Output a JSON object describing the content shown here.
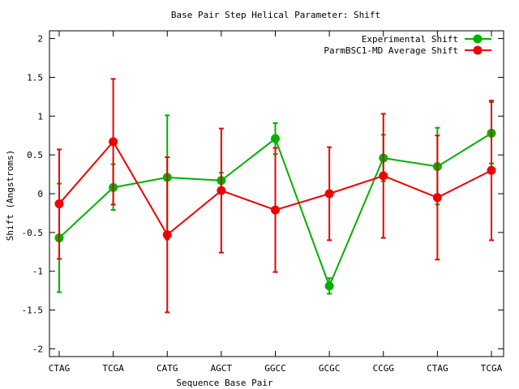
{
  "chart_data": {
    "type": "line",
    "title": "Base Pair Step Helical Parameter: Shift",
    "xlabel": "Sequence Base Pair",
    "ylabel": "Shift (Angstroms)",
    "categories": [
      "CTAG",
      "TCGA",
      "CATG",
      "AGCT",
      "GGCC",
      "GCGC",
      "CCGG",
      "CTAG",
      "TCGA"
    ],
    "ylim": [
      -2.1,
      2.1
    ],
    "yticks": [
      2,
      1.5,
      1,
      0.5,
      0,
      -0.5,
      -1,
      -1.5,
      -2
    ],
    "ytick_labels": [
      "2",
      "1.5",
      "1",
      "0.5",
      "0",
      "-0.5",
      "-1",
      "-1.5",
      "-2"
    ],
    "grid": false,
    "legend_position": "top-right",
    "series": [
      {
        "name": "Experimental Shift",
        "color": "#00b000",
        "values": [
          -0.57,
          0.08,
          0.21,
          0.17,
          0.71,
          -1.19,
          0.46,
          0.35,
          0.78
        ],
        "err_low": [
          -1.27,
          -0.21,
          -0.59,
          0.07,
          0.51,
          -1.29,
          0.16,
          -0.14,
          0.39
        ],
        "err_high": [
          0.13,
          0.38,
          1.01,
          0.27,
          0.91,
          -1.09,
          0.76,
          0.85,
          1.18
        ]
      },
      {
        "name": "ParmBSC1-MD Average Shift",
        "color": "#ee0000",
        "values": [
          -0.13,
          0.67,
          -0.53,
          0.04,
          -0.21,
          0.0,
          0.23,
          -0.05,
          0.3
        ],
        "err_low": [
          -0.84,
          -0.14,
          -1.53,
          -0.76,
          -1.01,
          -0.6,
          -0.57,
          -0.85,
          -0.6
        ],
        "err_high": [
          0.57,
          1.48,
          0.47,
          0.84,
          0.59,
          0.6,
          1.03,
          0.75,
          1.2
        ]
      }
    ]
  }
}
